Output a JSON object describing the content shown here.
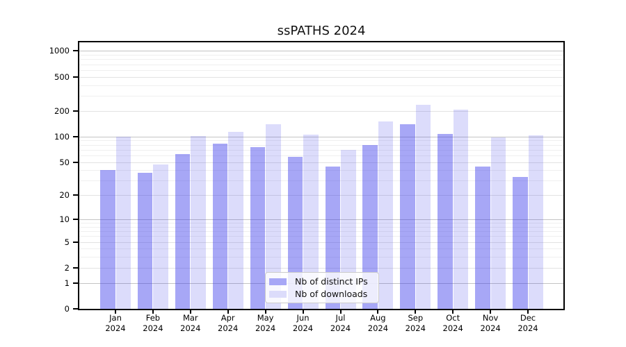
{
  "figure": {
    "title": "ssPATHS 2024"
  },
  "chart_data": {
    "type": "bar",
    "title": "ssPATHS 2024",
    "categories": [
      "Jan",
      "Feb",
      "Mar",
      "Apr",
      "May",
      "Jun",
      "Jul",
      "Aug",
      "Sep",
      "Oct",
      "Nov",
      "Dec"
    ],
    "x_labels_second_line": "2024",
    "series": [
      {
        "name": "Nb of distinct IPs",
        "key": "distinct-ips",
        "values": [
          40,
          37,
          62,
          82,
          75,
          58,
          44,
          80,
          140,
          108,
          44,
          33
        ],
        "fill": "rgba(60,60,235,0.45)",
        "legend_color": "#a7a7f6"
      },
      {
        "name": "Nb of downloads",
        "key": "downloads",
        "values": [
          100,
          47,
          102,
          114,
          140,
          105,
          70,
          150,
          235,
          205,
          97,
          103
        ],
        "fill": "rgba(60,60,235,0.18)",
        "legend_color": "#dcdcfb"
      }
    ],
    "y_axis": {
      "scale": "log10(1+x)",
      "ticks": [
        1000,
        500,
        200,
        100,
        50,
        20,
        10,
        5,
        2,
        1,
        0
      ],
      "major_gridlines": [
        1,
        10,
        100,
        1000
      ],
      "mid_gridlines": [
        2,
        5,
        20,
        50,
        200,
        500
      ],
      "minor_gridlines": [
        3,
        4,
        6,
        7,
        8,
        9,
        30,
        40,
        60,
        70,
        80,
        90,
        300,
        400,
        600,
        700,
        800,
        900
      ],
      "top_value": 1260
    },
    "legend": {
      "entries": [
        "Nb of distinct IPs",
        "Nb of downloads"
      ],
      "position": "lower center"
    },
    "grid": true
  },
  "colors": {
    "bar_dark": "rgba(60,60,235,0.45)",
    "bar_light": "rgba(60,60,235,0.18)",
    "grid_major": "#c4c4c4",
    "grid_mid": "#e2e2e2",
    "grid_minor": "#efefef",
    "spine": "#000000",
    "legend_border": "#cbcbcb"
  }
}
